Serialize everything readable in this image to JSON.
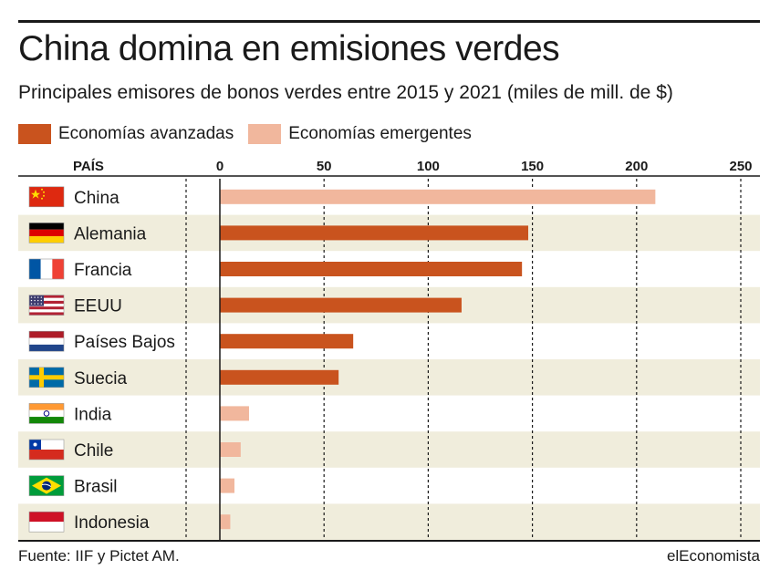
{
  "title": "China domina en emisiones verdes",
  "subtitle": "Principales emisores de bonos verdes entre 2015 y 2021 (miles de mill. de $)",
  "legend": [
    {
      "label": "Economías avanzadas",
      "color": "#c9531e"
    },
    {
      "label": "Economías emergentes",
      "color": "#f1b79d"
    }
  ],
  "source": "Fuente: IIF y Pictet AM.",
  "brand": "elEconomista",
  "chart_data": {
    "type": "bar",
    "orientation": "horizontal",
    "category_header": "PAÍS",
    "categories": [
      "China",
      "Alemania",
      "Francia",
      "EEUU",
      "Países Bajos",
      "Suecia",
      "India",
      "Chile",
      "Brasil",
      "Indonesia"
    ],
    "values": [
      209,
      148,
      145,
      116,
      64,
      57,
      14,
      10,
      7,
      5
    ],
    "groups": [
      "emergentes",
      "avanzadas",
      "avanzadas",
      "avanzadas",
      "avanzadas",
      "avanzadas",
      "emergentes",
      "emergentes",
      "emergentes",
      "emergentes"
    ],
    "colors": {
      "avanzadas": "#c9531e",
      "emergentes": "#f1b79d"
    },
    "flags": [
      "china-flag-icon",
      "germany-flag-icon",
      "france-flag-icon",
      "usa-flag-icon",
      "netherlands-flag-icon",
      "sweden-flag-icon",
      "india-flag-icon",
      "chile-flag-icon",
      "brazil-flag-icon",
      "indonesia-flag-icon"
    ],
    "xticks": [
      0,
      50,
      100,
      150,
      200,
      250
    ],
    "xlim": [
      0,
      250
    ],
    "grid": true,
    "legend_position": "top-left",
    "row_band_color": "#f0eddc"
  }
}
